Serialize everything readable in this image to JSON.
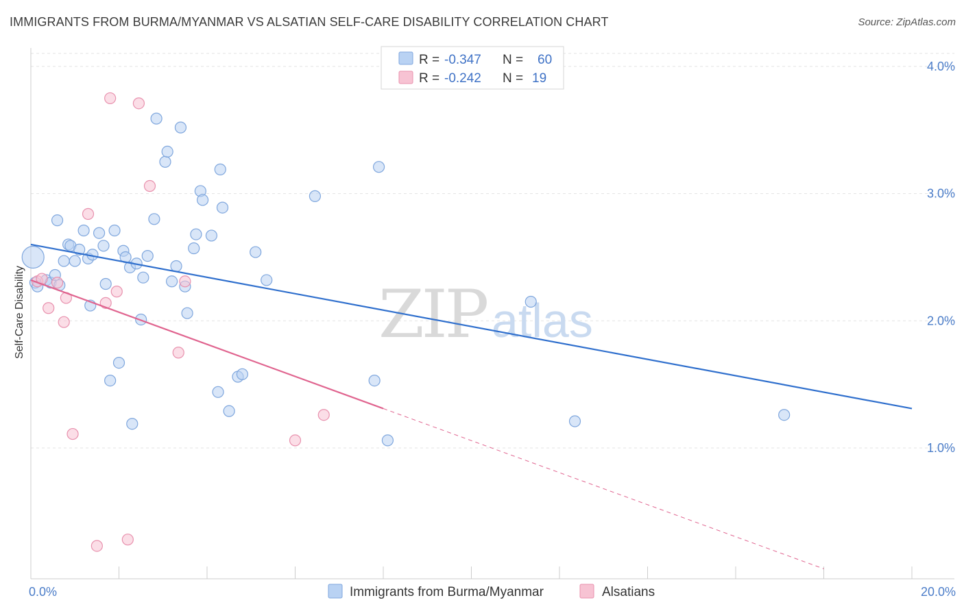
{
  "title": "IMMIGRANTS FROM BURMA/MYANMAR VS ALSATIAN SELF-CARE DISABILITY CORRELATION CHART",
  "source": "Source: ZipAtlas.com",
  "watermark": {
    "zip": "ZIP",
    "atlas": "atlas"
  },
  "colors": {
    "blue_fill": "#b9d2f3",
    "blue_stroke": "#7ea6dd",
    "blue_line": "#2f6fcd",
    "pink_fill": "#f7c3d3",
    "pink_stroke": "#e890ad",
    "pink_line": "#e0648f",
    "grid": "#e3e3e3",
    "axis_label": "#4a7cc8"
  },
  "stats": [
    {
      "r_label": "R =",
      "r_value": "-0.347",
      "n_label": "N =",
      "n_value": "60"
    },
    {
      "r_label": "R =",
      "r_value": "-0.242",
      "n_label": "N =",
      "n_value": "19"
    }
  ],
  "chart_data": {
    "type": "scatter",
    "xlabel": "",
    "ylabel": "Self-Care Disability",
    "xlim": [
      0,
      20
    ],
    "ylim": [
      0,
      4.2
    ],
    "x_tick_labels": [
      {
        "value": 0,
        "label": "0.0%"
      },
      {
        "value": 20,
        "label": "20.0%"
      }
    ],
    "y_tick_labels": [
      {
        "value": 1,
        "label": "1.0%"
      },
      {
        "value": 2,
        "label": "2.0%"
      },
      {
        "value": 3,
        "label": "3.0%"
      },
      {
        "value": 4,
        "label": "4.0%"
      }
    ],
    "x_minor_ticks": [
      0,
      2,
      4,
      6,
      8,
      10,
      12,
      14,
      16,
      18,
      20
    ],
    "legend_position": "bottom",
    "series": [
      {
        "name": "Immigrants from Burma/Myanmar",
        "color": "blue",
        "trend": {
          "x": [
            0,
            20
          ],
          "y": [
            2.6,
            1.31
          ],
          "dashed_to": null
        },
        "points": [
          [
            0.05,
            2.5
          ],
          [
            0.1,
            2.3
          ],
          [
            0.15,
            2.27
          ],
          [
            0.35,
            2.32
          ],
          [
            0.45,
            2.3
          ],
          [
            0.55,
            2.36
          ],
          [
            0.65,
            2.28
          ],
          [
            0.6,
            2.79
          ],
          [
            0.75,
            2.47
          ],
          [
            0.85,
            2.6
          ],
          [
            0.9,
            2.59
          ],
          [
            1.0,
            2.47
          ],
          [
            1.1,
            2.56
          ],
          [
            1.2,
            2.71
          ],
          [
            1.3,
            2.49
          ],
          [
            1.4,
            2.52
          ],
          [
            1.35,
            2.12
          ],
          [
            1.55,
            2.69
          ],
          [
            1.65,
            2.59
          ],
          [
            1.7,
            2.29
          ],
          [
            1.8,
            1.53
          ],
          [
            1.9,
            2.71
          ],
          [
            2.0,
            1.67
          ],
          [
            2.1,
            2.55
          ],
          [
            2.15,
            2.5
          ],
          [
            2.25,
            2.42
          ],
          [
            2.3,
            1.19
          ],
          [
            2.4,
            2.45
          ],
          [
            2.5,
            2.01
          ],
          [
            2.55,
            2.34
          ],
          [
            2.65,
            2.51
          ],
          [
            2.8,
            2.8
          ],
          [
            2.85,
            3.59
          ],
          [
            3.05,
            3.25
          ],
          [
            3.1,
            3.33
          ],
          [
            3.2,
            2.31
          ],
          [
            3.3,
            2.43
          ],
          [
            3.4,
            3.52
          ],
          [
            3.5,
            2.27
          ],
          [
            3.55,
            2.06
          ],
          [
            3.7,
            2.57
          ],
          [
            3.75,
            2.68
          ],
          [
            3.85,
            3.02
          ],
          [
            3.9,
            2.95
          ],
          [
            4.1,
            2.67
          ],
          [
            4.25,
            1.44
          ],
          [
            4.3,
            3.19
          ],
          [
            4.35,
            2.89
          ],
          [
            4.5,
            1.29
          ],
          [
            4.7,
            1.56
          ],
          [
            4.8,
            1.58
          ],
          [
            5.1,
            2.54
          ],
          [
            5.35,
            2.32
          ],
          [
            6.45,
            2.98
          ],
          [
            7.8,
            1.53
          ],
          [
            7.9,
            3.21
          ],
          [
            8.1,
            1.06
          ],
          [
            11.35,
            2.15
          ],
          [
            12.35,
            1.21
          ],
          [
            17.1,
            1.26
          ]
        ]
      },
      {
        "name": "Alsatians",
        "color": "pink",
        "trend": {
          "x": [
            0,
            8.0
          ],
          "y": [
            2.32,
            1.31
          ],
          "dashed_to": {
            "x": 18.0,
            "y": 0.05
          }
        },
        "points": [
          [
            0.15,
            2.31
          ],
          [
            0.25,
            2.33
          ],
          [
            0.4,
            2.1
          ],
          [
            0.6,
            2.3
          ],
          [
            0.75,
            1.99
          ],
          [
            0.8,
            2.18
          ],
          [
            0.95,
            1.11
          ],
          [
            1.3,
            2.84
          ],
          [
            1.5,
            0.23
          ],
          [
            1.7,
            2.14
          ],
          [
            1.8,
            3.75
          ],
          [
            1.95,
            2.23
          ],
          [
            2.2,
            0.28
          ],
          [
            2.45,
            3.71
          ],
          [
            2.7,
            3.06
          ],
          [
            3.35,
            1.75
          ],
          [
            3.5,
            2.31
          ],
          [
            6.0,
            1.06
          ],
          [
            6.65,
            1.26
          ]
        ]
      }
    ]
  },
  "legend": [
    {
      "label": "Immigrants from Burma/Myanmar",
      "color": "blue"
    },
    {
      "label": "Alsatians",
      "color": "pink"
    }
  ]
}
